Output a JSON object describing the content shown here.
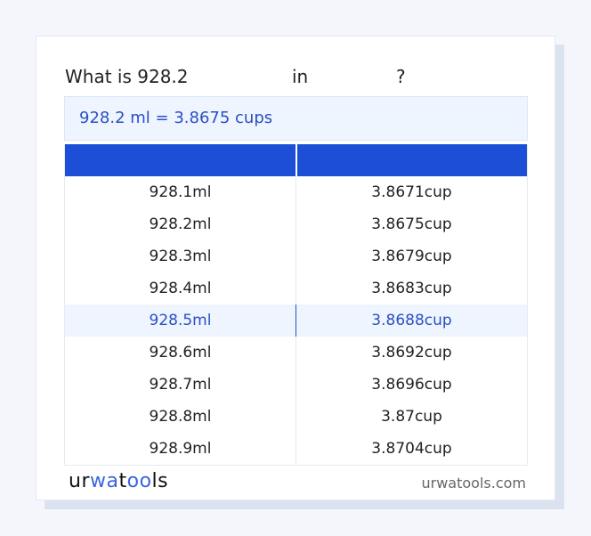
{
  "title": {
    "prefix": "What is 928.2",
    "in": "in",
    "suffix": "?"
  },
  "result": "928.2 ml = 3.8675 cups",
  "table": {
    "rows": [
      {
        "ml": "928.1ml",
        "cup": "3.8671cup"
      },
      {
        "ml": "928.2ml",
        "cup": "3.8675cup"
      },
      {
        "ml": "928.3ml",
        "cup": "3.8679cup"
      },
      {
        "ml": "928.4ml",
        "cup": "3.8683cup"
      },
      {
        "ml": "928.5ml",
        "cup": "3.8688cup",
        "highlighted": true
      },
      {
        "ml": "928.6ml",
        "cup": "3.8692cup"
      },
      {
        "ml": "928.7ml",
        "cup": "3.8696cup"
      },
      {
        "ml": "928.8ml",
        "cup": "3.87cup"
      },
      {
        "ml": "928.9ml",
        "cup": "3.8704cup"
      }
    ]
  },
  "footer": {
    "logo": "urwatools",
    "site": "urwatools.com"
  },
  "colors": {
    "accent": "#1c4fd6",
    "highlight_bg": "#eef5fe",
    "highlight_text": "#2b4fc4"
  }
}
